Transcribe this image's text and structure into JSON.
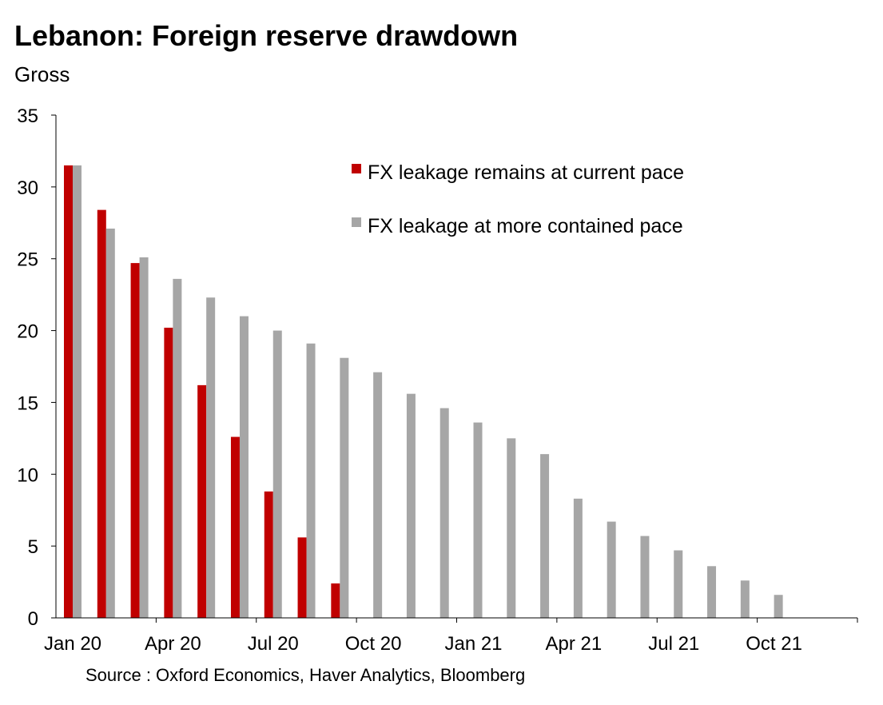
{
  "header": {
    "title": "Lebanon: Foreign reserve drawdown",
    "subtitle": "Gross"
  },
  "footer": {
    "source": "Source : Oxford Economics, Haver Analytics, Bloomberg"
  },
  "chart_data": {
    "type": "bar",
    "title": "Lebanon: Foreign reserve drawdown",
    "subtitle": "Gross",
    "xlabel": "",
    "ylabel": "",
    "ylim": [
      0,
      35
    ],
    "yticks": [
      0,
      5,
      10,
      15,
      20,
      25,
      30,
      35
    ],
    "months": 24,
    "xtick_labels": [
      {
        "index": 0,
        "label": "Jan 20"
      },
      {
        "index": 3,
        "label": "Apr 20"
      },
      {
        "index": 6,
        "label": "Jul 20"
      },
      {
        "index": 9,
        "label": "Oct 20"
      },
      {
        "index": 12,
        "label": "Jan 21"
      },
      {
        "index": 15,
        "label": "Apr 21"
      },
      {
        "index": 18,
        "label": "Jul 21"
      },
      {
        "index": 21,
        "label": "Oct 21"
      }
    ],
    "legend_position": "top-right",
    "series": [
      {
        "name": "FX leakage remains at current pace",
        "color": "#C00000",
        "values": [
          31.5,
          28.4,
          24.7,
          20.2,
          16.2,
          12.6,
          8.8,
          5.6,
          2.4,
          null,
          null,
          null,
          null,
          null,
          null,
          null,
          null,
          null,
          null,
          null,
          null,
          null,
          null,
          null
        ]
      },
      {
        "name": "FX leakage at more contained pace",
        "color": "#A6A6A6",
        "values": [
          31.5,
          27.1,
          25.1,
          23.6,
          22.3,
          21.0,
          20.0,
          19.1,
          18.1,
          17.1,
          15.6,
          14.6,
          13.6,
          12.5,
          11.4,
          8.3,
          6.7,
          5.7,
          4.7,
          3.6,
          2.6,
          1.6,
          null,
          null
        ]
      }
    ]
  }
}
